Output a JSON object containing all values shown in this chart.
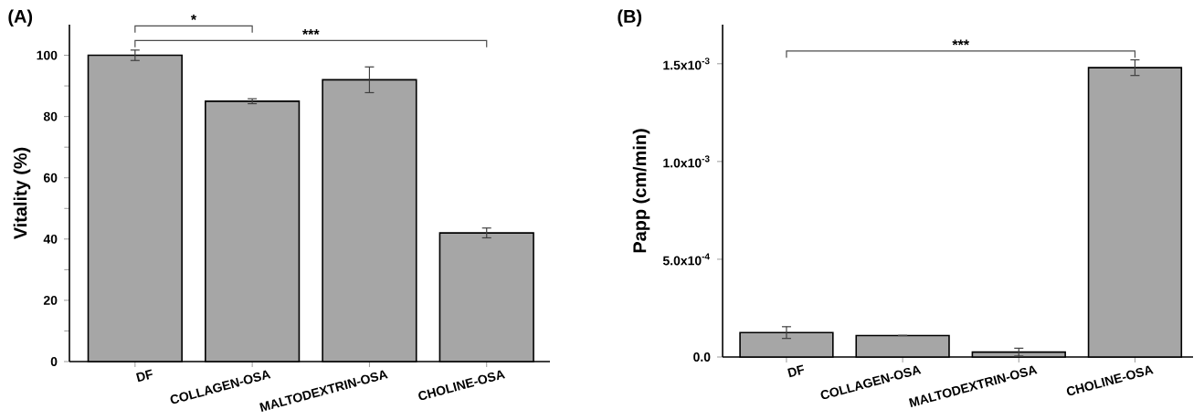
{
  "chart_data": [
    {
      "type": "bar",
      "title": "(A)",
      "ylabel": "Vitality (%)",
      "categories": [
        "DF",
        "COLLAGEN-OSA",
        "MALTODEXTRIN-OSA",
        "CHOLINE-OSA"
      ],
      "values": [
        100,
        85,
        92,
        42
      ],
      "errors": [
        1.7,
        0.8,
        4.2,
        1.6
      ],
      "color": "#a6a6a6",
      "ylim": [
        0,
        110
      ],
      "yticks": [
        0,
        20,
        40,
        60,
        80,
        100
      ],
      "grid": false,
      "annotations": [
        "*",
        "***"
      ]
    },
    {
      "type": "bar",
      "title": "(B)",
      "ylabel": "Papp (cm/min)",
      "categories": [
        "DF",
        "COLLAGEN-OSA",
        "MALTODEXTRIN-OSA",
        "CHOLINE-OSA"
      ],
      "values": [
        0.000125,
        0.00011,
        2.5e-05,
        0.00148
      ],
      "errors": [
        3e-05,
        null,
        2e-05,
        4e-05
      ],
      "color": "#a6a6a6",
      "ylim": [
        0,
        0.0017
      ],
      "yticks": [
        {
          "value": 0,
          "label": "0.0"
        },
        {
          "value": 0.0005,
          "label": "5.0x10$^{-4}$"
        },
        {
          "value": 0.001,
          "label": "1.0x10$^{-3}$"
        },
        {
          "value": 0.0015,
          "label": "1.5x10$^{-3}$"
        }
      ],
      "grid": false,
      "annotations": [
        "***"
      ]
    }
  ]
}
